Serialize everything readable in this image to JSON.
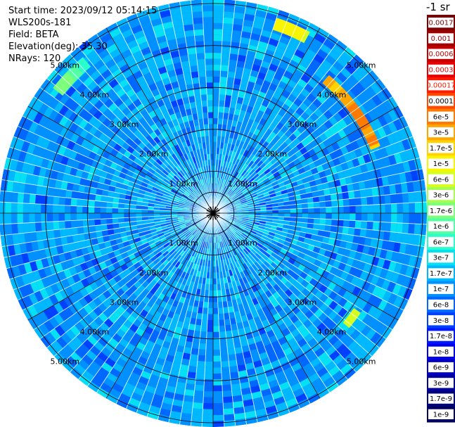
{
  "info": {
    "start_time": "Start time: 2023/09/12 05:14:15",
    "instrument": "WLS200s-181",
    "field": "Field: BETA",
    "elevation": "Elevation(deg): 35.30",
    "nrays": "NRays: 120"
  },
  "chart_data": {
    "type": "heatmap",
    "projection": "polar-ppi",
    "ring_labels": [
      "1.00km",
      "2.00km",
      "3.00km",
      "4.00km",
      "5.00km"
    ],
    "rays": 120,
    "max_range_km": 5.1,
    "colorbar": {
      "title": "-1 sr",
      "tick_labels": [
        "0.0017",
        "0.001",
        "0.0006",
        "0.0003",
        "0.00017",
        "0.0001",
        "6e-5",
        "3e-5",
        "1.7e-5",
        "1e-5",
        "6e-6",
        "3e-6",
        "1.7e-6",
        "1e-6",
        "6e-7",
        "3e-7",
        "1.7e-7",
        "1e-7",
        "6e-8",
        "3e-8",
        "1.7e-8",
        "1e-8",
        "6e-9",
        "3e-9",
        "1.7e-9",
        "1e-9"
      ],
      "colors": [
        "#7f0000",
        "#a00000",
        "#c40000",
        "#e80000",
        "#ff1a00",
        "#ff4a00",
        "#ff7a00",
        "#ffa600",
        "#ffd200",
        "#f9f400",
        "#d4ff20",
        "#a6ff50",
        "#7cff7a",
        "#52ffa4",
        "#2affcc",
        "#06e0f4",
        "#00b8ff",
        "#0090ff",
        "#0068ff",
        "#0040ff",
        "#0018ff",
        "#0000ec",
        "#0000c4",
        "#00009c",
        "#000078",
        "#000060"
      ]
    },
    "dominant_level": "1e-7",
    "high_return_arcs": [
      {
        "azimuth_deg": [
          18,
          28
        ],
        "range_km": [
          4.6,
          4.9
        ],
        "level": "1e-5"
      },
      {
        "azimuth_deg": [
          -52,
          -40
        ],
        "range_km": [
          4.55,
          4.85
        ],
        "level": "1e-6"
      },
      {
        "azimuth_deg": [
          40,
          68
        ],
        "range_km": [
          4.05,
          4.3
        ],
        "level": "3e-5"
      },
      {
        "azimuth_deg": [
          124,
          130
        ],
        "range_km": [
          4.05,
          4.25
        ],
        "level": "6e-6"
      }
    ]
  }
}
